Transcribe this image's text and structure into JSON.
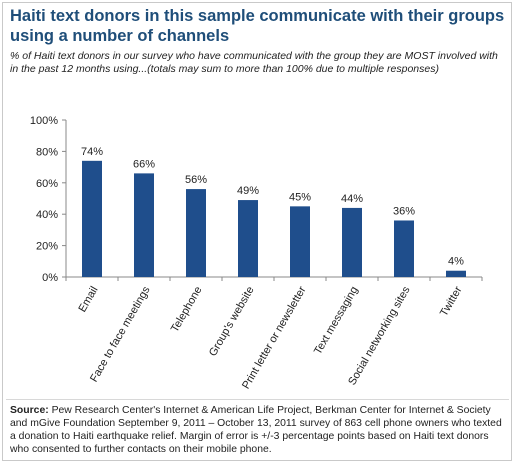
{
  "title": "Haiti text donors in this sample communicate with their groups using a number of channels",
  "subtitle": "% of Haiti text donors in our survey who have communicated with the group they are MOST involved with in the past 12 months using...(totals may sum to more than 100% due to multiple responses)",
  "source": {
    "label": "Source:",
    "text": "Pew Research Center's Internet & American Life Project, Berkman Center for Internet & Society and mGive Foundation September 9, 2011 – October 13, 2011 survey of 863 cell phone owners who texted a donation to Haiti earthquake relief. Margin of error is +/-3 percentage points based on Haiti text donors who consented to further contacts on their mobile phone."
  },
  "colors": {
    "bar": "#1f4e8c",
    "title": "#1f4e79",
    "axis": "#888888"
  },
  "chart_data": {
    "type": "bar",
    "categories": [
      "Email",
      "Face to face meetings",
      "Telephone",
      "Group's website",
      "Print letter or newsletter",
      "Text messaging",
      "Social networking sites",
      "Twitter"
    ],
    "values": [
      74,
      66,
      56,
      49,
      45,
      44,
      36,
      4
    ],
    "data_labels": [
      "74%",
      "66%",
      "56%",
      "49%",
      "45%",
      "44%",
      "36%",
      "4%"
    ],
    "ylim": [
      0,
      100
    ],
    "yticks": [
      0,
      20,
      40,
      60,
      80,
      100
    ],
    "ytick_labels": [
      "0%",
      "20%",
      "40%",
      "60%",
      "80%",
      "100%"
    ],
    "grid": false,
    "legend": "none"
  }
}
